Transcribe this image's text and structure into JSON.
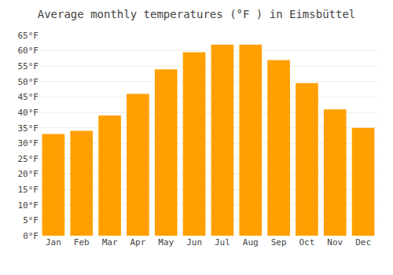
{
  "chart_data": {
    "type": "bar",
    "title": "Average monthly temperatures (°F ) in Eimsbüttel",
    "categories": [
      "Jan",
      "Feb",
      "Mar",
      "Apr",
      "May",
      "Jun",
      "Jul",
      "Aug",
      "Sep",
      "Oct",
      "Nov",
      "Dec"
    ],
    "values": [
      33,
      34,
      39,
      46,
      54,
      59.5,
      62,
      62,
      57,
      49.5,
      41,
      35
    ],
    "color": "#FFA000",
    "ylim": [
      0,
      65
    ],
    "yticks": [
      {
        "value": 0,
        "label": "0°F"
      },
      {
        "value": 5,
        "label": "5°F"
      },
      {
        "value": 10,
        "label": "10°F"
      },
      {
        "value": 15,
        "label": "15°F"
      },
      {
        "value": 20,
        "label": "20°F"
      },
      {
        "value": 25,
        "label": "25°F"
      },
      {
        "value": 30,
        "label": "30°F"
      },
      {
        "value": 35,
        "label": "35°F"
      },
      {
        "value": 40,
        "label": "40°F"
      },
      {
        "value": 45,
        "label": "45°F"
      },
      {
        "value": 50,
        "label": "50°F"
      },
      {
        "value": 55,
        "label": "55°F"
      },
      {
        "value": 60,
        "label": "60°F"
      },
      {
        "value": 65,
        "label": "65°F"
      }
    ],
    "grid": true
  }
}
